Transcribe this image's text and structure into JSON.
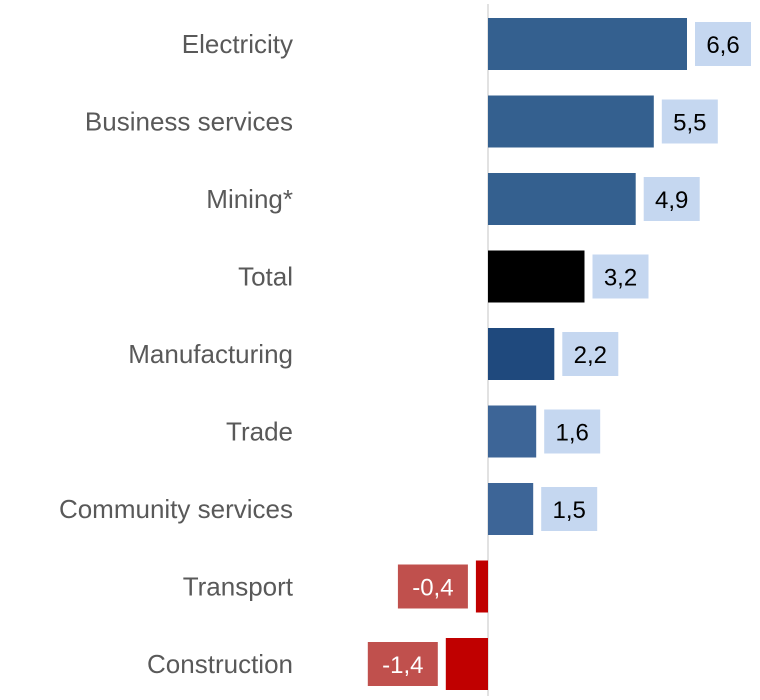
{
  "chart_data": {
    "type": "bar",
    "orientation": "horizontal",
    "categories": [
      "Electricity",
      "Business services",
      "Mining*",
      "Total",
      "Manufacturing",
      "Trade",
      "Community services",
      "Transport",
      "Construction"
    ],
    "values": [
      6.6,
      5.5,
      4.9,
      3.2,
      2.2,
      1.6,
      1.5,
      -0.4,
      -1.4
    ],
    "data_labels": [
      "6,6",
      "5,5",
      "4,9",
      "3,2",
      "2,2",
      "1,6",
      "1,5",
      "-0,4",
      "-1,4"
    ],
    "bar_colors": [
      "#34608f",
      "#34608f",
      "#34608f",
      "#000000",
      "#1f497d",
      "#3d6597",
      "#3d6597",
      "#c00000",
      "#c00000"
    ],
    "label_bg_positive": "#c5d7f0",
    "label_bg_negative": "#c0504d",
    "label_text_positive": "#000000",
    "label_text_negative": "#ffffff",
    "xlim": [
      -1.6,
      8.8
    ],
    "title": "",
    "xlabel": "",
    "ylabel": "",
    "grid": false,
    "legend": "none"
  }
}
